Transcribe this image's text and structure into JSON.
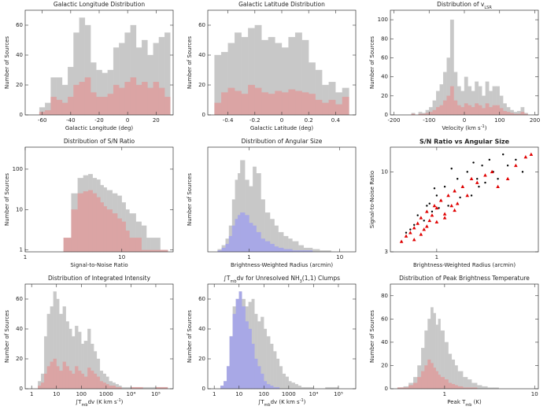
{
  "chart_data": [
    {
      "type": "histogram",
      "title": "Galactic Longitude Distribution",
      "xlabel": "Galactic Longitude (deg)",
      "ylabel": "Number of Sources",
      "xlim": [
        -72,
        32
      ],
      "xticks": [
        -60,
        -40,
        -20,
        0,
        20
      ],
      "ylim": [
        0,
        70
      ],
      "yticks": [
        0,
        20,
        40,
        60
      ],
      "bins": [
        -62,
        -58,
        -54,
        -50,
        -46,
        -42,
        -38,
        -34,
        -30,
        -26,
        -22,
        -18,
        -14,
        -10,
        -6,
        -2,
        2,
        6,
        10,
        14,
        18,
        22,
        26,
        30
      ],
      "series": [
        {
          "color": "#c8c8c8",
          "values": [
            5,
            8,
            25,
            25,
            20,
            32,
            55,
            65,
            60,
            35,
            30,
            28,
            30,
            45,
            48,
            55,
            60,
            45,
            50,
            40,
            48,
            52,
            55
          ]
        },
        {
          "color": "#dba4a4",
          "values": [
            2,
            3,
            12,
            10,
            8,
            12,
            20,
            22,
            25,
            15,
            12,
            12,
            14,
            20,
            18,
            22,
            25,
            20,
            22,
            18,
            22,
            18,
            12
          ]
        }
      ]
    },
    {
      "type": "histogram",
      "title": "Galactic Latitude Distribution",
      "xlabel": "Galactic Latitude (deg)",
      "ylabel": "Number of Sources",
      "xlim": [
        -0.55,
        0.55
      ],
      "xticks": [
        -0.4,
        -0.2,
        0,
        0.2,
        0.4
      ],
      "ylim": [
        0,
        70
      ],
      "yticks": [
        0,
        20,
        40,
        60
      ],
      "bins": [
        -0.5,
        -0.45,
        -0.4,
        -0.35,
        -0.3,
        -0.25,
        -0.2,
        -0.15,
        -0.1,
        -0.05,
        0,
        0.05,
        0.1,
        0.15,
        0.2,
        0.25,
        0.3,
        0.35,
        0.4,
        0.45,
        0.5
      ],
      "series": [
        {
          "color": "#c8c8c8",
          "values": [
            40,
            42,
            48,
            55,
            52,
            58,
            60,
            50,
            52,
            48,
            45,
            52,
            55,
            50,
            35,
            30,
            20,
            22,
            15,
            18
          ]
        },
        {
          "color": "#dba4a4",
          "values": [
            8,
            15,
            18,
            16,
            14,
            20,
            18,
            15,
            14,
            16,
            15,
            17,
            16,
            15,
            14,
            10,
            8,
            10,
            7,
            12
          ]
        }
      ]
    },
    {
      "type": "histogram",
      "title": [
        {
          "text": "Distribution of v"
        },
        {
          "text": "LSR",
          "sub": true
        }
      ],
      "xlabel": [
        {
          "text": "Velocity (km s"
        },
        {
          "text": "-1",
          "sup": true
        },
        {
          "text": ")"
        }
      ],
      "ylabel": "Number of Sources",
      "xlim": [
        -210,
        210
      ],
      "xticks": [
        -200,
        -100,
        0,
        100,
        200
      ],
      "ylim": [
        0,
        110
      ],
      "yticks": [
        0,
        20,
        40,
        60,
        80,
        100
      ],
      "bins": [
        -150,
        -140,
        -130,
        -120,
        -110,
        -100,
        -90,
        -80,
        -70,
        -60,
        -50,
        -40,
        -30,
        -20,
        -10,
        0,
        10,
        20,
        30,
        40,
        50,
        60,
        70,
        80,
        90,
        100,
        110,
        120,
        130,
        140,
        150,
        160,
        170,
        180
      ],
      "series": [
        {
          "color": "#c8c8c8",
          "values": [
            2,
            0,
            3,
            2,
            5,
            8,
            15,
            25,
            32,
            45,
            60,
            100,
            45,
            30,
            25,
            40,
            30,
            25,
            35,
            30,
            20,
            35,
            25,
            30,
            30,
            20,
            12,
            8,
            5,
            3,
            4,
            8,
            2
          ]
        },
        {
          "color": "#dba4a4",
          "values": [
            1,
            0,
            1,
            1,
            2,
            3,
            5,
            8,
            10,
            15,
            20,
            30,
            15,
            10,
            8,
            12,
            10,
            8,
            12,
            10,
            7,
            12,
            8,
            10,
            10,
            7,
            4,
            3,
            2,
            1,
            1,
            3,
            1
          ]
        }
      ]
    },
    {
      "type": "histogram",
      "title": "Distribution of S/N Ratio",
      "xlabel": "Signal-to-Noise Ratio",
      "ylabel": "Number of Sources",
      "xlim": [
        1,
        34
      ],
      "xlog": true,
      "xticks": [
        1,
        10
      ],
      "ylim": [
        0.9,
        350
      ],
      "ylog": true,
      "yticks": [
        1,
        10,
        100
      ],
      "bins": [
        2.5,
        3,
        3.5,
        4,
        4.5,
        5,
        5.5,
        6,
        6.5,
        7,
        8,
        9,
        10,
        11,
        12,
        14,
        16,
        18,
        20,
        25,
        30
      ],
      "series": [
        {
          "color": "#c8c8c8",
          "values": [
            1,
            25,
            60,
            70,
            75,
            60,
            55,
            40,
            35,
            30,
            25,
            22,
            15,
            10,
            8,
            5,
            4,
            2,
            2,
            1
          ]
        },
        {
          "color": "#dba4a4",
          "values": [
            2,
            10,
            25,
            28,
            30,
            25,
            20,
            15,
            12,
            10,
            8,
            6,
            5,
            3,
            2,
            2,
            1,
            1,
            1,
            1
          ]
        }
      ]
    },
    {
      "type": "histogram",
      "title": "Distribution of Angular Size",
      "xlabel": "Brightness-Weighted Radius (arcmin)",
      "ylabel": "Number of Sources",
      "xlim": [
        0.35,
        15
      ],
      "xlog": true,
      "xticks": [
        1,
        10
      ],
      "ylim": [
        0,
        80
      ],
      "bins": [
        0.45,
        0.5,
        0.55,
        0.6,
        0.65,
        0.7,
        0.75,
        0.8,
        0.9,
        1.0,
        1.1,
        1.2,
        1.35,
        1.5,
        1.7,
        1.9,
        2.1,
        2.4,
        2.7,
        3,
        3.5,
        4,
        5,
        6,
        8
      ],
      "series": [
        {
          "color": "#c8c8c8",
          "values": [
            2,
            5,
            10,
            20,
            40,
            55,
            60,
            70,
            55,
            50,
            65,
            60,
            40,
            30,
            25,
            20,
            15,
            12,
            10,
            8,
            5,
            3,
            2,
            1
          ]
        },
        {
          "color": "#a8a8e6",
          "values": [
            1,
            3,
            6,
            12,
            20,
            25,
            28,
            30,
            28,
            22,
            20,
            15,
            10,
            8,
            6,
            4,
            3,
            2,
            2,
            1,
            1,
            1,
            0,
            0
          ]
        }
      ]
    },
    {
      "type": "scatter",
      "title": "S/N Ratio vs Angular Size",
      "title_bold": true,
      "xlabel": "Brightness-Weighted Radius (arcmin)",
      "ylabel": "Signal-to-Noise Ratio",
      "xlim": [
        0.35,
        10
      ],
      "xlog": true,
      "xticks": [
        1
      ],
      "ylim": [
        3,
        14.5
      ],
      "ylog": true,
      "yticks": [
        3,
        10
      ],
      "series": [
        {
          "color": "#000000",
          "marker": "circle",
          "x": [
            0.5,
            0.6,
            0.7,
            0.8,
            0.9,
            1.0,
            1.1,
            1.2,
            1.3,
            1.5,
            1.6,
            1.8,
            2.0,
            2.2,
            2.5,
            2.8,
            3.0,
            3.3,
            3.6,
            4.0,
            4.5,
            5.0,
            6.0,
            7.0,
            0.45,
            0.55,
            0.65,
            0.75,
            0.85,
            0.95,
            1.05,
            1.4,
            1.7,
            2.3,
            2.6
          ],
          "values": [
            4,
            4.5,
            5,
            6,
            5.5,
            7,
            6.5,
            8,
            6,
            7.5,
            9,
            8,
            10,
            7,
            9,
            11,
            8.5,
            12,
            10,
            9,
            13,
            11,
            12,
            10,
            3.5,
            4.2,
            5.2,
            4.8,
            6.2,
            7.8,
            5.8,
            10.5,
            6.8,
            11.5,
            8
          ]
        },
        {
          "color": "#e00000",
          "marker": "triangle",
          "x": [
            0.45,
            0.5,
            0.55,
            0.6,
            0.65,
            0.7,
            0.75,
            0.8,
            0.85,
            0.9,
            0.95,
            1.0,
            1.1,
            1.2,
            1.3,
            1.4,
            1.5,
            1.6,
            1.8,
            2.0,
            2.2,
            2.5,
            3.0,
            3.5,
            4.0,
            5.0,
            6.0,
            7.5,
            8.5,
            0.6,
            0.7,
            0.8,
            1.0,
            1.2,
            1.5
          ],
          "values": [
            3.5,
            3.8,
            4,
            4.3,
            4.6,
            5,
            4.2,
            5.5,
            4.8,
            5.2,
            6,
            5.8,
            6.5,
            5,
            7,
            6,
            7.5,
            6.2,
            8,
            7,
            9,
            8.5,
            9.5,
            10,
            8,
            9,
            11,
            12.5,
            13,
            3.6,
            3.9,
            4.4,
            4.7,
            5.3,
            5.6
          ]
        }
      ]
    },
    {
      "type": "histogram",
      "title": "Distribution of Integrated Intensity",
      "xlabel": [
        {
          "text": "∫T"
        },
        {
          "text": "mb",
          "sub": true
        },
        {
          "text": "dv (K km s"
        },
        {
          "text": "-1",
          "sup": true
        },
        {
          "text": ")"
        }
      ],
      "ylabel": "Number of Sources",
      "xlim": [
        0.55,
        500000
      ],
      "xlog": true,
      "xticks": [
        1,
        10,
        100,
        1000,
        {
          "value": 10000,
          "label": "10⁴"
        },
        {
          "value": 100000,
          "label": "10⁵"
        }
      ],
      "ylim": [
        0,
        70
      ],
      "yticks": [
        0,
        20,
        40,
        60
      ],
      "bins": [
        1.8,
        2.4,
        3.2,
        4.2,
        5.6,
        7.5,
        10,
        13,
        18,
        24,
        32,
        42,
        56,
        75,
        100,
        130,
        180,
        240,
        320,
        420,
        560,
        750,
        1000,
        1300,
        1800,
        2400,
        3200,
        4200,
        5600,
        10000,
        30000,
        100000,
        300000
      ],
      "series": [
        {
          "color": "#c8c8c8",
          "values": [
            5,
            10,
            35,
            50,
            55,
            65,
            60,
            50,
            55,
            45,
            40,
            35,
            42,
            38,
            30,
            32,
            40,
            30,
            25,
            20,
            12,
            10,
            8,
            5,
            4,
            3,
            2,
            1,
            1,
            1,
            1,
            1
          ]
        },
        {
          "color": "#dba4a4",
          "values": [
            2,
            4,
            10,
            15,
            18,
            20,
            15,
            12,
            18,
            15,
            12,
            10,
            15,
            12,
            10,
            8,
            14,
            12,
            10,
            8,
            5,
            4,
            3,
            2,
            2,
            1,
            1,
            0,
            0,
            1,
            0,
            1
          ]
        }
      ]
    },
    {
      "type": "histogram",
      "title": [
        {
          "text": "∫T"
        },
        {
          "text": "mb",
          "sub": true
        },
        {
          "text": "dv for Unresolved NH"
        },
        {
          "text": "3",
          "sub": true
        },
        {
          "text": "(1,1) Clumps"
        }
      ],
      "xlabel": [
        {
          "text": "∫T"
        },
        {
          "text": "mb",
          "sub": true
        },
        {
          "text": "dv (K km s"
        },
        {
          "text": "-1",
          "sup": true
        },
        {
          "text": ")"
        }
      ],
      "ylabel": "Number of Sources",
      "xlim": [
        0.55,
        500000
      ],
      "xlog": true,
      "xticks": [
        1,
        10,
        100,
        1000,
        {
          "value": 10000,
          "label": "10⁴"
        },
        {
          "value": 100000,
          "label": "10⁵"
        }
      ],
      "ylim": [
        0,
        70
      ],
      "yticks": [
        0,
        20,
        40,
        60
      ],
      "bins": [
        1.8,
        2.4,
        3.2,
        4.2,
        5.6,
        7.5,
        10,
        13,
        18,
        24,
        32,
        42,
        56,
        75,
        100,
        130,
        180,
        240,
        320,
        420,
        560,
        750,
        1000,
        1300,
        1800,
        2400,
        3200,
        4200,
        5600,
        10000,
        30000,
        100000,
        300000
      ],
      "series": [
        {
          "color": "#c8c8c8",
          "values": [
            2,
            5,
            15,
            35,
            55,
            60,
            65,
            60,
            55,
            58,
            60,
            50,
            45,
            48,
            40,
            35,
            30,
            25,
            20,
            15,
            10,
            8,
            5,
            4,
            3,
            2,
            1,
            1,
            1,
            0,
            1,
            0
          ]
        },
        {
          "color": "#a8a8e6",
          "values": [
            2,
            5,
            15,
            35,
            50,
            60,
            65,
            55,
            45,
            40,
            30,
            20,
            15,
            10,
            5,
            3,
            2,
            1,
            1,
            0,
            0,
            0,
            0,
            0,
            0,
            0,
            0,
            0,
            0,
            0,
            0,
            0
          ]
        }
      ]
    },
    {
      "type": "histogram",
      "title": "Distribution of Peak Brightness Temperature",
      "xlabel": [
        {
          "text": "Peak T"
        },
        {
          "text": "mb",
          "sub": true
        },
        {
          "text": " (K)"
        }
      ],
      "ylabel": "Number of Sources",
      "xlim": [
        0.25,
        11
      ],
      "xlog": true,
      "xticks": [
        1,
        10
      ],
      "ylim": [
        0,
        90
      ],
      "yticks": [
        0,
        20,
        40,
        60,
        80
      ],
      "bins": [
        0.3,
        0.35,
        0.4,
        0.45,
        0.5,
        0.55,
        0.6,
        0.65,
        0.7,
        0.75,
        0.8,
        0.85,
        0.9,
        1,
        1.1,
        1.2,
        1.3,
        1.4,
        1.6,
        1.8,
        2,
        2.3,
        2.6,
        3,
        3.5,
        4
      ],
      "series": [
        {
          "color": "#c8c8c8",
          "values": [
            1,
            2,
            5,
            10,
            20,
            35,
            50,
            60,
            70,
            65,
            55,
            60,
            50,
            40,
            30,
            25,
            20,
            15,
            10,
            8,
            5,
            3,
            2,
            1,
            1
          ]
        },
        {
          "color": "#dba4a4",
          "values": [
            1,
            1,
            3,
            5,
            10,
            15,
            20,
            25,
            22,
            18,
            15,
            12,
            10,
            8,
            5,
            4,
            3,
            2,
            1,
            1,
            1,
            0,
            0,
            0,
            0
          ]
        }
      ]
    }
  ]
}
